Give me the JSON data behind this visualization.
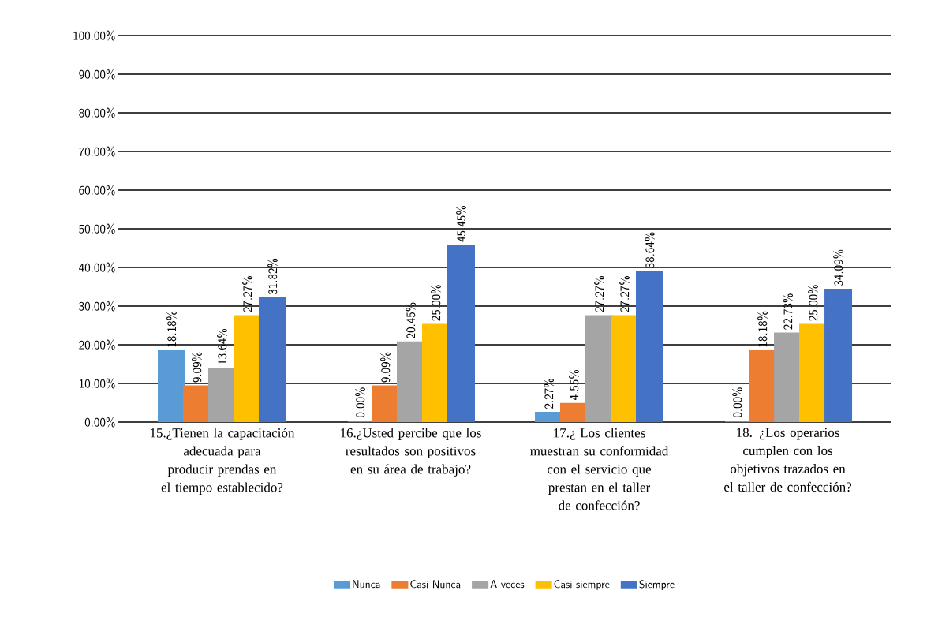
{
  "chart_data": {
    "type": "bar",
    "categories": [
      "15.¿Tienen la capacitación adecuada para producir prendas en el tiempo establecido?",
      "16.¿Usted percibe que los resultados son positivos en su área de trabajo?",
      "17.¿ Los clientes muestran su conformidad con el servicio que prestan en el taller de confección?",
      "18. ¿Los operarios cumplen con los objetivos trazados en el taller de confección?"
    ],
    "series": [
      {
        "name": "Nunca",
        "color": "#5b9bd5",
        "values": [
          18.18,
          0,
          2.27,
          0
        ],
        "value_labels": [
          "18.18%",
          "0.00%",
          "2.27%",
          "0.00%"
        ]
      },
      {
        "name": "Casi Nunca",
        "color": "#ed7d31",
        "values": [
          9.09,
          9.09,
          4.55,
          18.18
        ],
        "value_labels": [
          "9.09%",
          "9.09%",
          "4.55%",
          "18.18%"
        ]
      },
      {
        "name": "A veces",
        "color": "#a5a5a5",
        "values": [
          13.64,
          20.45,
          27.27,
          22.73
        ],
        "value_labels": [
          "13.64%",
          "20.45%",
          "27.27%",
          "22.73%"
        ]
      },
      {
        "name": "Casi siempre",
        "color": "#ffc000",
        "values": [
          27.27,
          25.0,
          27.27,
          25.0
        ],
        "value_labels": [
          "27.27%",
          "25.00%",
          "27.27%",
          "25.00%"
        ]
      },
      {
        "name": "Siempre",
        "color": "#4472c4",
        "values": [
          31.82,
          45.45,
          38.64,
          34.09
        ],
        "value_labels": [
          "31.82%",
          "45.45%",
          "38.64%",
          "34.09%"
        ]
      }
    ],
    "ylim": [
      0,
      100
    ],
    "yticks": [
      {
        "value": 0,
        "label": "0.00%"
      },
      {
        "value": 10,
        "label": "10.00%"
      },
      {
        "value": 20,
        "label": "20.00%"
      },
      {
        "value": 30,
        "label": "30.00%"
      },
      {
        "value": 40,
        "label": "40.00%"
      },
      {
        "value": 50,
        "label": "50.00%"
      },
      {
        "value": 60,
        "label": "60.00%"
      },
      {
        "value": 70,
        "label": "70.00%"
      },
      {
        "value": 80,
        "label": "80.00%"
      },
      {
        "value": 90,
        "label": "90.00%"
      },
      {
        "value": 100,
        "label": "100.00%"
      }
    ],
    "grid": "y",
    "legend": "bottom"
  }
}
